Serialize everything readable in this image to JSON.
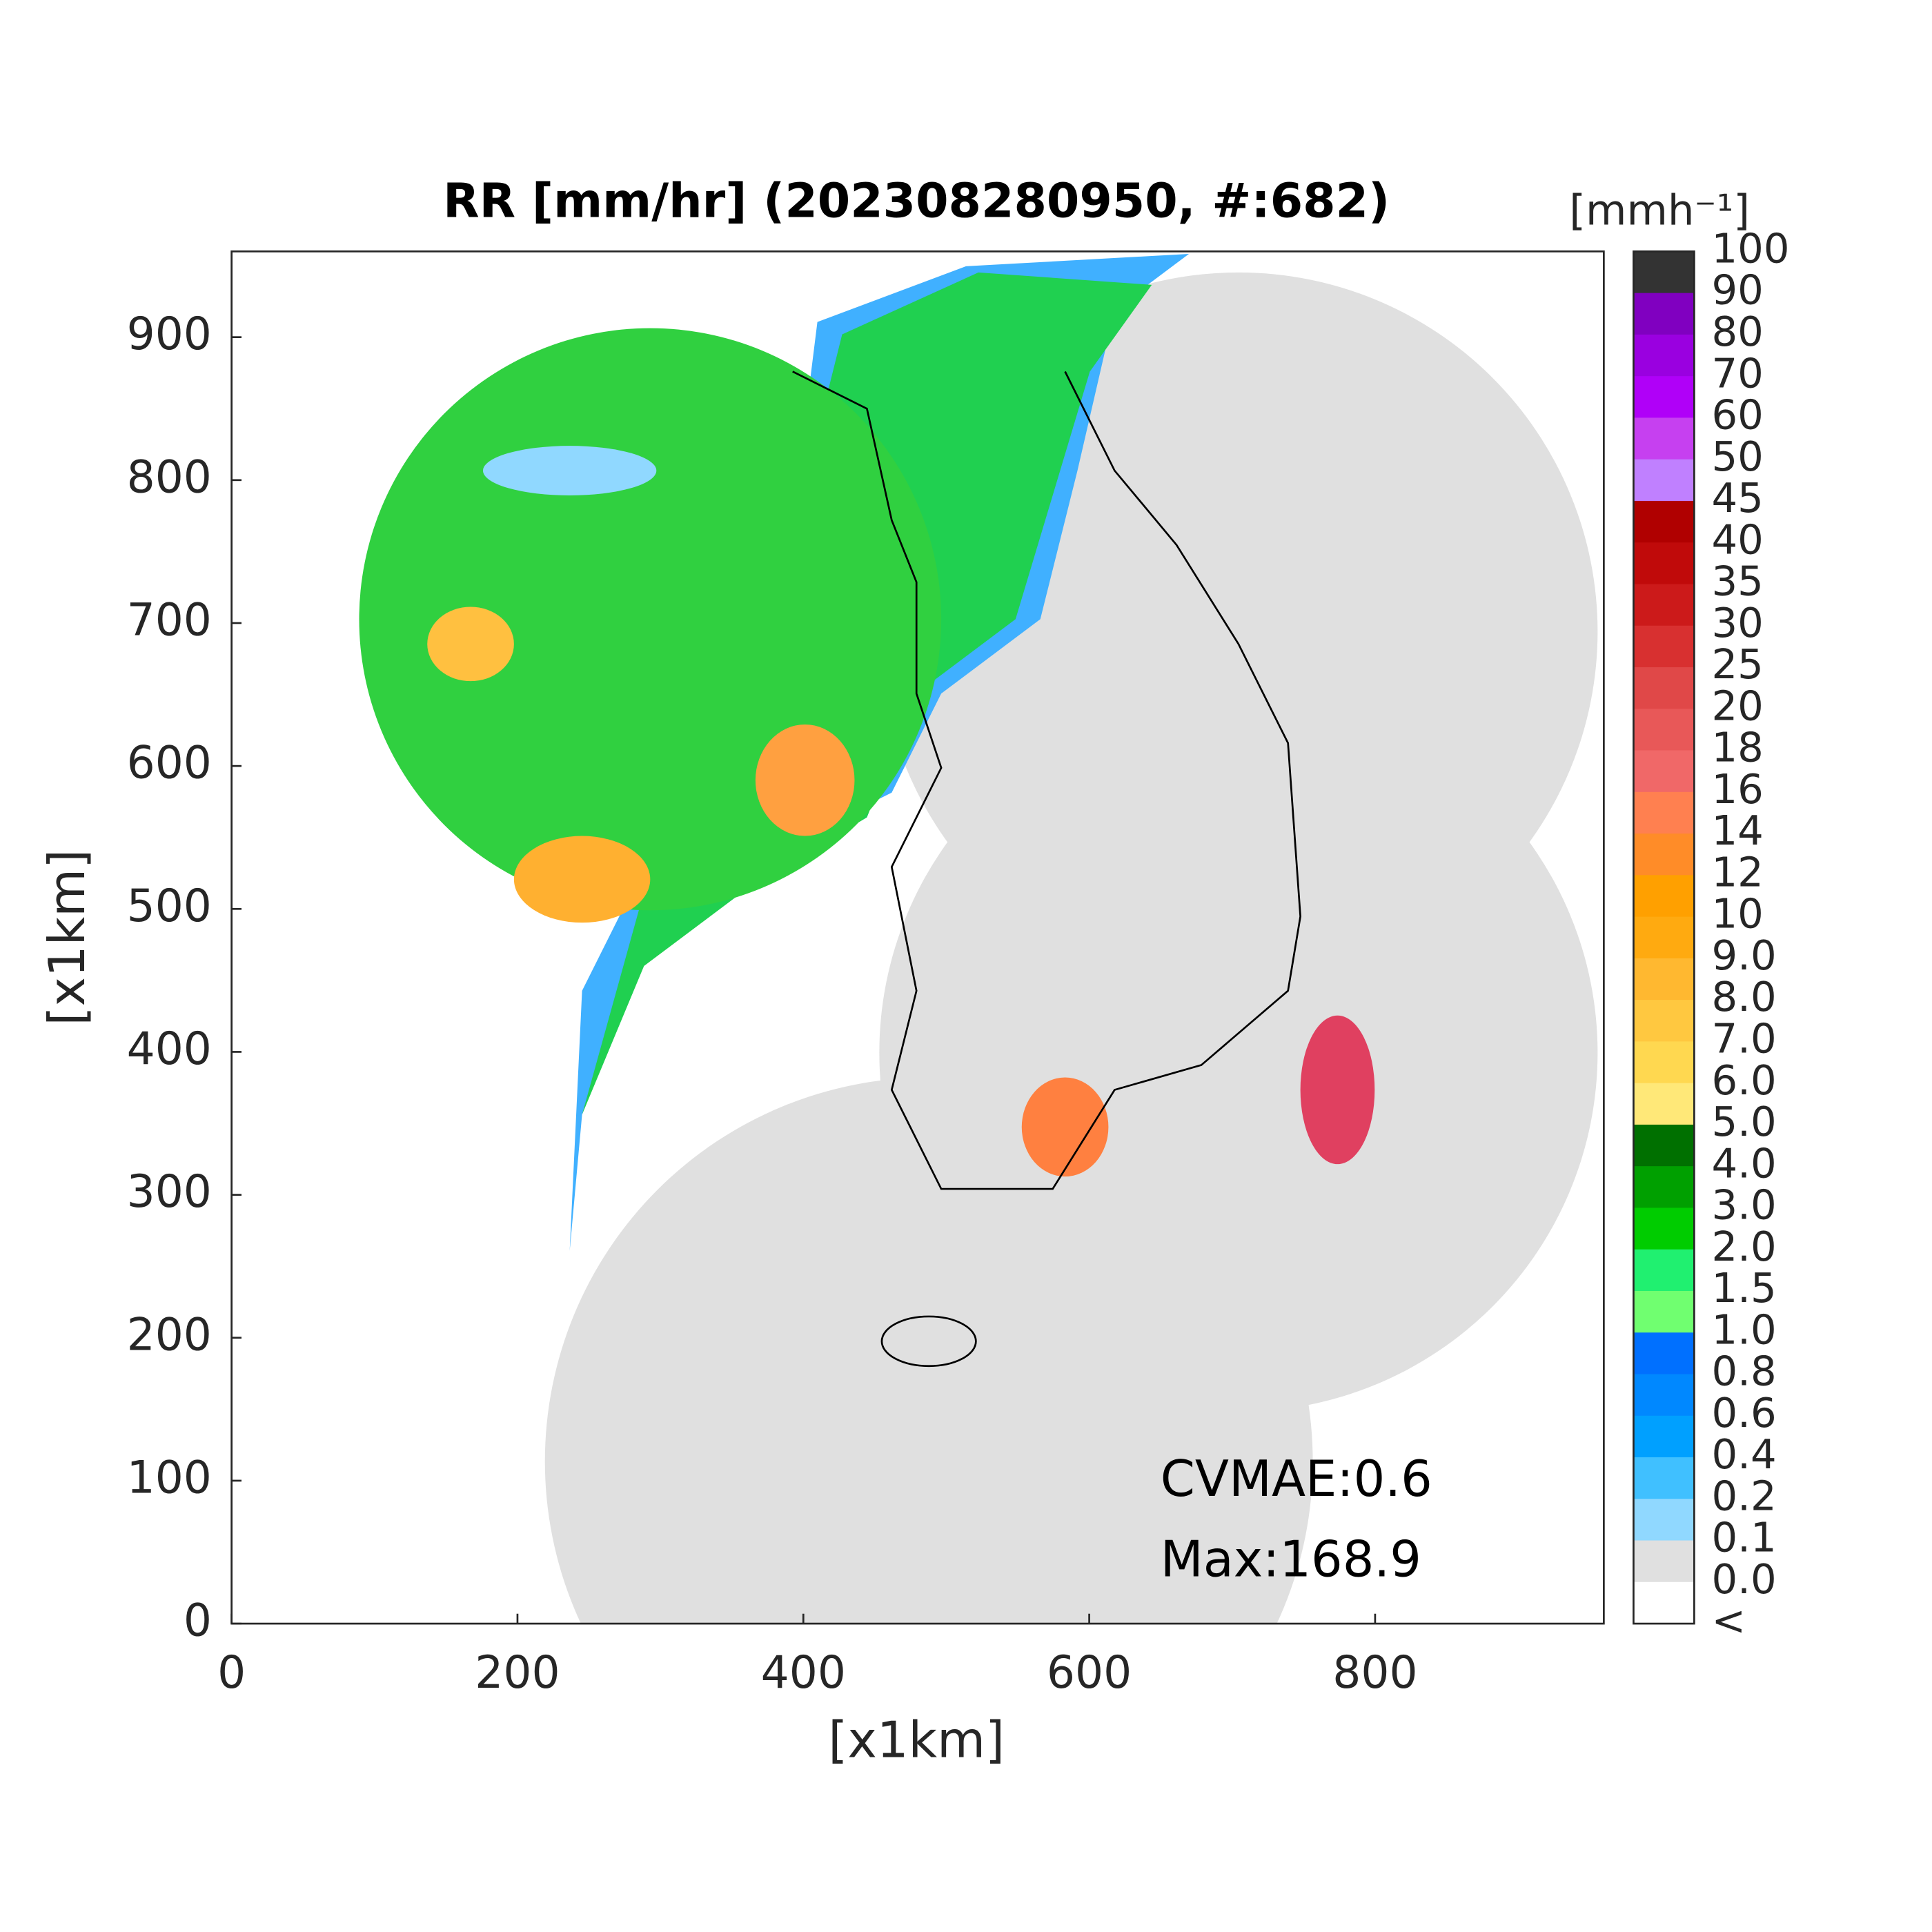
{
  "chart_data": {
    "type": "map",
    "title": "RR [mm/hr] (202308280950, #:682)",
    "xlabel": "[x1km]",
    "ylabel": "[x1km]",
    "xlim": [
      0,
      960
    ],
    "ylim": [
      0,
      960
    ],
    "xticks": [
      0,
      200,
      400,
      600,
      800
    ],
    "yticks": [
      0,
      100,
      200,
      300,
      400,
      500,
      600,
      700,
      800,
      900
    ],
    "annotations": [
      "CVMAE:0.6",
      "Max:168.9"
    ],
    "colorbar": {
      "unit": "[mmh⁻¹]",
      "labels": [
        "100",
        "90",
        "80",
        "70",
        "60",
        "50",
        "45",
        "40",
        "35",
        "30",
        "25",
        "20",
        "18",
        "16",
        "14",
        "12",
        "10",
        "9.0",
        "8.0",
        "7.0",
        "6.0",
        "5.0",
        "4.0",
        "3.0",
        "2.0",
        "1.5",
        "1.0",
        "0.8",
        "0.6",
        "0.4",
        "0.2",
        "0.1",
        "0.0",
        "<"
      ],
      "colors": [
        "#333333",
        "#8000c0",
        "#9a00e0",
        "#b000f8",
        "#c640f0",
        "#c080ff",
        "#b00000",
        "#c00a0a",
        "#cc1a1a",
        "#d83030",
        "#e04848",
        "#e85858",
        "#f06868",
        "#ff8050",
        "#ff8c28",
        "#ffa000",
        "#ffaa10",
        "#ffb830",
        "#ffc840",
        "#ffd850",
        "#ffe878",
        "#007000",
        "#00a000",
        "#00cc00",
        "#20f070",
        "#70ff70",
        "#0070ff",
        "#0088ff",
        "#00a0ff",
        "#40c0ff",
        "#90d8ff",
        "#e0e0e0",
        "#ffffff"
      ]
    }
  }
}
